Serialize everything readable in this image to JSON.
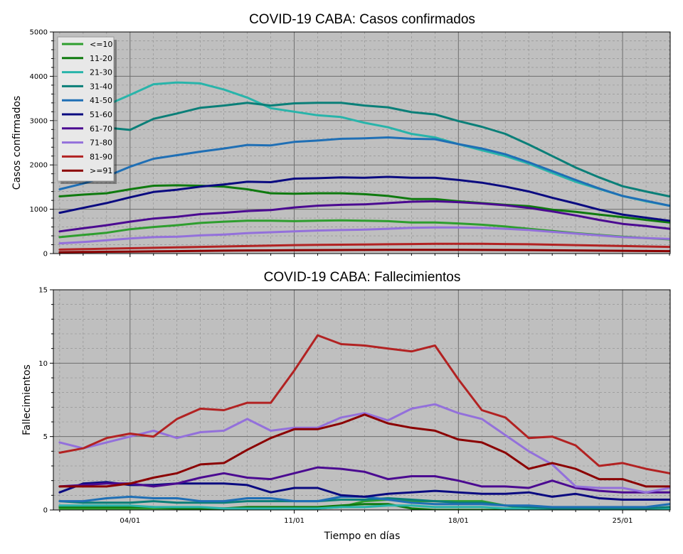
{
  "figure": {
    "xlabel": "Tiempo en días",
    "xtick_labels": [
      "04/01",
      "11/01",
      "18/01",
      "25/01"
    ],
    "xtick_days": [
      4,
      11,
      18,
      25
    ]
  },
  "chart_data": [
    {
      "type": "line",
      "title": "COVID-19 CABA: Casos confirmados",
      "xlabel": "",
      "ylabel": "Casos confirmados",
      "ylim": [
        0,
        5000
      ],
      "yticks": [
        0,
        1000,
        2000,
        3000,
        4000,
        5000
      ],
      "grid": true,
      "legend": "top-left",
      "x": [
        1,
        2,
        3,
        4,
        5,
        6,
        7,
        8,
        9,
        10,
        11,
        12,
        13,
        14,
        15,
        16,
        17,
        18,
        19,
        20,
        21,
        22,
        23,
        24,
        25,
        26,
        27
      ],
      "series": [
        {
          "name": "<=10",
          "color": "#2e9e2e",
          "values": [
            370,
            420,
            470,
            550,
            600,
            640,
            690,
            720,
            740,
            740,
            730,
            740,
            750,
            740,
            730,
            700,
            700,
            680,
            650,
            610,
            560,
            510,
            460,
            420,
            380,
            350,
            320
          ]
        },
        {
          "name": "11-20",
          "color": "#0f7a0f",
          "values": [
            1290,
            1330,
            1360,
            1450,
            1530,
            1540,
            1530,
            1510,
            1450,
            1360,
            1350,
            1360,
            1360,
            1340,
            1300,
            1230,
            1230,
            1180,
            1140,
            1100,
            1070,
            990,
            940,
            880,
            820,
            760,
            700
          ]
        },
        {
          "name": "21-30",
          "color": "#28b4aa",
          "values": [
            2680,
            3050,
            3350,
            3580,
            3820,
            3860,
            3840,
            3700,
            3520,
            3280,
            3200,
            3120,
            3080,
            2950,
            2850,
            2700,
            2620,
            2470,
            2330,
            2200,
            2030,
            1820,
            1620,
            1460,
            1300,
            1180,
            1080
          ]
        },
        {
          "name": "31-40",
          "color": "#0a7f78",
          "values": [
            2260,
            2530,
            2840,
            2790,
            3040,
            3160,
            3290,
            3340,
            3400,
            3340,
            3390,
            3400,
            3400,
            3340,
            3300,
            3190,
            3140,
            2990,
            2860,
            2700,
            2460,
            2200,
            1940,
            1720,
            1520,
            1400,
            1290
          ]
        },
        {
          "name": "41-50",
          "color": "#1f6fb5",
          "values": [
            1450,
            1580,
            1740,
            1960,
            2140,
            2220,
            2300,
            2370,
            2450,
            2440,
            2520,
            2550,
            2590,
            2600,
            2620,
            2590,
            2580,
            2470,
            2370,
            2240,
            2060,
            1860,
            1660,
            1470,
            1300,
            1190,
            1080
          ]
        },
        {
          "name": "51-60",
          "color": "#0a0a80",
          "values": [
            920,
            1030,
            1140,
            1270,
            1390,
            1440,
            1510,
            1560,
            1620,
            1610,
            1690,
            1700,
            1720,
            1710,
            1730,
            1710,
            1710,
            1660,
            1600,
            1510,
            1400,
            1260,
            1130,
            990,
            880,
            810,
            740
          ]
        },
        {
          "name": "61-70",
          "color": "#4b0a91",
          "values": [
            500,
            570,
            640,
            720,
            790,
            830,
            890,
            920,
            960,
            980,
            1040,
            1080,
            1100,
            1110,
            1140,
            1170,
            1180,
            1160,
            1130,
            1090,
            1030,
            950,
            860,
            760,
            670,
            620,
            560
          ]
        },
        {
          "name": "71-80",
          "color": "#9370db",
          "values": [
            230,
            260,
            300,
            340,
            370,
            380,
            410,
            430,
            460,
            480,
            500,
            520,
            530,
            540,
            560,
            580,
            590,
            590,
            580,
            560,
            530,
            490,
            450,
            410,
            370,
            350,
            330
          ]
        },
        {
          "name": "81-90",
          "color": "#b22222",
          "values": [
            90,
            100,
            110,
            120,
            130,
            140,
            150,
            160,
            170,
            180,
            190,
            195,
            200,
            205,
            210,
            215,
            220,
            220,
            220,
            215,
            210,
            200,
            190,
            180,
            170,
            160,
            150
          ]
        },
        {
          "name": ">=91",
          "color": "#8b0000",
          "values": [
            30,
            35,
            40,
            45,
            50,
            55,
            60,
            65,
            70,
            72,
            75,
            78,
            80,
            82,
            83,
            85,
            85,
            84,
            82,
            80,
            78,
            74,
            70,
            66,
            62,
            58,
            55
          ]
        }
      ]
    },
    {
      "type": "line",
      "title": "COVID-19 CABA: Fallecimientos",
      "xlabel": "Tiempo en días",
      "ylabel": "Fallecimientos",
      "ylim": [
        0,
        15
      ],
      "yticks": [
        0,
        5,
        10,
        15
      ],
      "grid": true,
      "x": [
        1,
        2,
        3,
        4,
        5,
        6,
        7,
        8,
        9,
        10,
        11,
        12,
        13,
        14,
        15,
        16,
        17,
        18,
        19,
        20,
        21,
        22,
        23,
        24,
        25,
        26,
        27
      ],
      "series": [
        {
          "name": "<=10",
          "color": "#2e9e2e",
          "values": [
            0.1,
            0.1,
            0.1,
            0.1,
            0.1,
            0.1,
            0.1,
            0.1,
            0.1,
            0.1,
            0.1,
            0.1,
            0.2,
            0.6,
            0.7,
            0.6,
            0.6,
            0.6,
            0.6,
            0.3,
            0.1,
            0.1,
            0.1,
            0.1,
            0.1,
            0.1,
            0.1
          ]
        },
        {
          "name": "11-20",
          "color": "#0f7a0f",
          "values": [
            0.2,
            0.2,
            0.2,
            0.2,
            0.2,
            0.1,
            0.1,
            0.1,
            0.2,
            0.2,
            0.2,
            0.2,
            0.3,
            0.4,
            0.4,
            0.1,
            0.0,
            0.0,
            0.0,
            0.0,
            0.0,
            0.0,
            0.0,
            0.0,
            0.0,
            0.0,
            0.0
          ]
        },
        {
          "name": "21-30",
          "color": "#28b4aa",
          "values": [
            0.3,
            0.3,
            0.3,
            0.3,
            0.2,
            0.2,
            0.2,
            0.1,
            0.1,
            0.1,
            0.1,
            0.1,
            0.2,
            0.2,
            0.3,
            0.3,
            0.2,
            0.2,
            0.2,
            0.1,
            0.1,
            0.1,
            0.1,
            0.1,
            0.1,
            0.1,
            0.1
          ]
        },
        {
          "name": "31-40",
          "color": "#0a7f78",
          "values": [
            0.6,
            0.5,
            0.5,
            0.5,
            0.6,
            0.5,
            0.5,
            0.5,
            0.6,
            0.6,
            0.6,
            0.6,
            0.7,
            0.7,
            0.8,
            0.7,
            0.6,
            0.5,
            0.5,
            0.3,
            0.2,
            0.1,
            0.1,
            0.1,
            0.1,
            0.1,
            0.2
          ]
        },
        {
          "name": "41-50",
          "color": "#1f6fb5",
          "values": [
            0.6,
            0.6,
            0.8,
            0.9,
            0.8,
            0.8,
            0.6,
            0.6,
            0.8,
            0.8,
            0.6,
            0.6,
            0.9,
            0.9,
            0.7,
            0.5,
            0.4,
            0.4,
            0.4,
            0.3,
            0.3,
            0.2,
            0.2,
            0.2,
            0.2,
            0.2,
            0.4
          ]
        },
        {
          "name": "51-60",
          "color": "#0a0a80",
          "values": [
            1.2,
            1.8,
            1.9,
            1.7,
            1.7,
            1.8,
            1.8,
            1.8,
            1.7,
            1.2,
            1.5,
            1.5,
            1.0,
            0.9,
            1.1,
            1.2,
            1.3,
            1.2,
            1.1,
            1.1,
            1.2,
            0.9,
            1.1,
            0.8,
            0.7,
            0.7,
            0.7
          ]
        },
        {
          "name": "61-70",
          "color": "#4b0a91",
          "values": [
            1.6,
            1.7,
            1.8,
            1.8,
            1.6,
            1.8,
            2.2,
            2.5,
            2.2,
            2.1,
            2.5,
            2.9,
            2.8,
            2.6,
            2.1,
            2.3,
            2.3,
            2.0,
            1.6,
            1.6,
            1.5,
            2.0,
            1.5,
            1.3,
            1.2,
            1.2,
            1.2
          ]
        },
        {
          "name": "71-80",
          "color": "#9370db",
          "values": [
            4.6,
            4.2,
            4.6,
            5.0,
            5.4,
            4.9,
            5.3,
            5.4,
            6.2,
            5.4,
            5.6,
            5.6,
            6.3,
            6.6,
            6.1,
            6.9,
            7.2,
            6.6,
            6.2,
            5.1,
            4.0,
            3.1,
            1.6,
            1.5,
            1.5,
            1.2,
            1.5
          ]
        },
        {
          "name": "81-90",
          "color": "#b22222",
          "values": [
            3.9,
            4.2,
            4.9,
            5.2,
            5.0,
            6.2,
            6.9,
            6.8,
            7.3,
            7.3,
            9.5,
            11.9,
            11.3,
            11.2,
            11.0,
            10.8,
            11.2,
            8.9,
            6.8,
            6.3,
            4.9,
            5.0,
            4.4,
            3.0,
            3.2,
            2.8,
            2.5
          ]
        },
        {
          "name": ">=91",
          "color": "#8b0000",
          "values": [
            1.6,
            1.6,
            1.6,
            1.8,
            2.2,
            2.5,
            3.1,
            3.2,
            4.1,
            4.9,
            5.5,
            5.5,
            5.9,
            6.5,
            5.9,
            5.6,
            5.4,
            4.8,
            4.6,
            3.9,
            2.8,
            3.2,
            2.8,
            2.1,
            2.1,
            1.6,
            1.6
          ]
        }
      ]
    }
  ]
}
